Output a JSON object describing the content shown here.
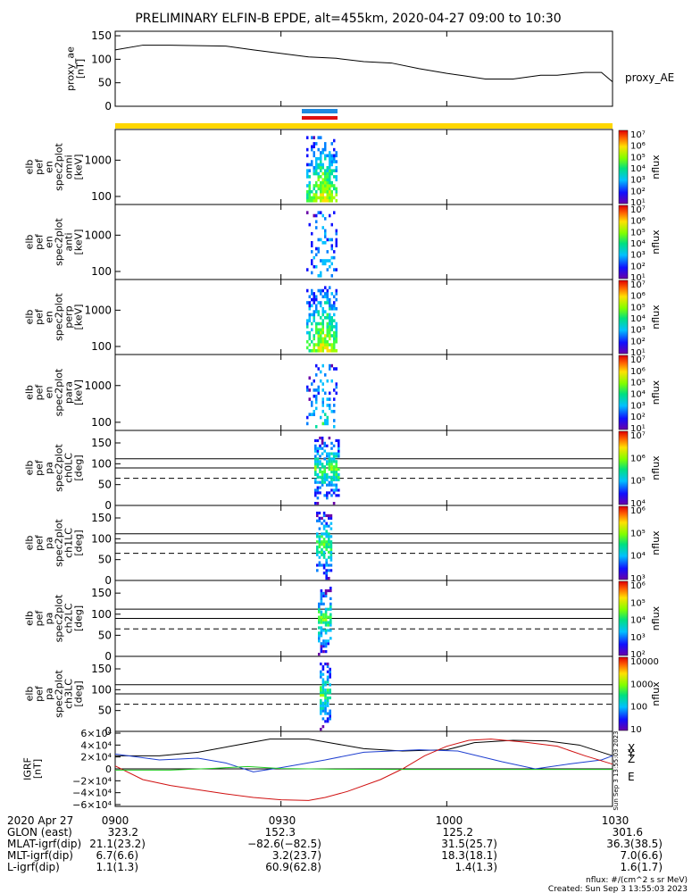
{
  "title": "PRELIMINARY ELFIN-B EPDE, alt=455km, 2020-04-27 09:00 to 10:30",
  "colors": {
    "ae_line": "#000000",
    "bar_blue": "#1f8ae0",
    "bar_red": "#e01010",
    "bar_yellow": "#ffd700",
    "grf_x": "#000000",
    "grf_y": "#1f3fd0",
    "grf_z": "#d01010",
    "grf_e": "#22cc22"
  },
  "chart_data": [
    {
      "type": "line",
      "panel": "proxy_ae",
      "ylabel": [
        "proxy_ae",
        "[nT]"
      ],
      "series_label": "proxy_AE",
      "ylim": [
        0,
        150
      ],
      "yticks": [
        "0",
        "50",
        "100",
        "150"
      ],
      "x_minutes": [
        0,
        5,
        10,
        20,
        25,
        35,
        40,
        45,
        50,
        55,
        60,
        63,
        67,
        72,
        77,
        80,
        85,
        88,
        90
      ],
      "values": [
        120,
        130,
        130,
        128,
        120,
        105,
        102,
        95,
        92,
        80,
        70,
        65,
        58,
        58,
        66,
        66,
        72,
        72,
        52
      ]
    },
    {
      "type": "heatmap",
      "panel": "omni",
      "ylabel": [
        "elb",
        "pef",
        "en",
        "spec2plot",
        "omni",
        "[keV]"
      ],
      "yscale": "log",
      "yticks": [
        "100",
        "1000"
      ],
      "colorbar": {
        "label": "nflux",
        "ticks": [
          "10¹",
          "10²",
          "10³",
          "10⁴",
          "10⁵",
          "10⁶",
          "10⁷"
        ]
      }
    },
    {
      "type": "heatmap",
      "panel": "anti",
      "ylabel": [
        "elb",
        "pef",
        "en",
        "spec2plot",
        "anti",
        "[keV]"
      ],
      "yscale": "log",
      "yticks": [
        "100",
        "1000"
      ],
      "colorbar": {
        "label": "nflux",
        "ticks": [
          "10¹",
          "10²",
          "10³",
          "10⁴",
          "10⁵",
          "10⁶",
          "10⁷"
        ]
      }
    },
    {
      "type": "heatmap",
      "panel": "perp",
      "ylabel": [
        "elb",
        "pef",
        "en",
        "spec2plot",
        "perp",
        "[keV]"
      ],
      "yscale": "log",
      "yticks": [
        "100",
        "1000"
      ],
      "colorbar": {
        "label": "nflux",
        "ticks": [
          "10¹",
          "10²",
          "10³",
          "10⁴",
          "10⁵",
          "10⁶",
          "10⁷"
        ]
      }
    },
    {
      "type": "heatmap",
      "panel": "para",
      "ylabel": [
        "elb",
        "pef",
        "en",
        "spec2plot",
        "para",
        "[keV]"
      ],
      "yscale": "log",
      "yticks": [
        "100",
        "1000"
      ],
      "colorbar": {
        "label": "nflux",
        "ticks": [
          "10¹",
          "10²",
          "10³",
          "10⁴",
          "10⁵",
          "10⁶",
          "10⁷"
        ]
      }
    },
    {
      "type": "heatmap",
      "panel": "ch0LC",
      "ylabel": [
        "elb",
        "pef",
        "pa",
        "spec2plot",
        "ch0LC",
        "[deg]"
      ],
      "ylim": [
        0,
        180
      ],
      "yticks": [
        "0",
        "50",
        "100",
        "150"
      ],
      "colorbar": {
        "label": "nflux",
        "ticks": [
          "10⁴",
          "10⁵",
          "10⁶",
          "10⁷"
        ]
      }
    },
    {
      "type": "heatmap",
      "panel": "ch1LC",
      "ylabel": [
        "elb",
        "pef",
        "pa",
        "spec2plot",
        "ch1LC",
        "[deg]"
      ],
      "ylim": [
        0,
        180
      ],
      "yticks": [
        "0",
        "50",
        "100",
        "150"
      ],
      "colorbar": {
        "label": "nflux",
        "ticks": [
          "10³",
          "10⁴",
          "10⁵",
          "10⁶"
        ]
      }
    },
    {
      "type": "heatmap",
      "panel": "ch2LC",
      "ylabel": [
        "elb",
        "pef",
        "pa",
        "spec2plot",
        "ch2LC",
        "[deg]"
      ],
      "ylim": [
        0,
        180
      ],
      "yticks": [
        "0",
        "50",
        "100",
        "150"
      ],
      "colorbar": {
        "label": "nflux",
        "ticks": [
          "10²",
          "10³",
          "10⁴",
          "10⁵",
          "10⁶"
        ]
      }
    },
    {
      "type": "heatmap",
      "panel": "ch3LC",
      "ylabel": [
        "elb",
        "pef",
        "pa",
        "spec2plot",
        "ch3LC",
        "[deg]"
      ],
      "ylim": [
        0,
        180
      ],
      "yticks": [
        "0",
        "50",
        "100",
        "150"
      ],
      "colorbar": {
        "label": "nflux",
        "ticks": [
          "10",
          "100",
          "1000",
          "10000"
        ]
      }
    },
    {
      "type": "line",
      "panel": "igrf",
      "ylabel": [
        "IGRF",
        "[nT]"
      ],
      "ylim": [
        -60000,
        60000
      ],
      "yticks": [
        "6×10⁴",
        "4×10⁴",
        "2×10⁴",
        "0",
        "−2×10⁴",
        "−4×10⁴",
        "−6×10⁴"
      ],
      "legend": [
        "X",
        "Y",
        "Z",
        "E"
      ],
      "series": [
        {
          "name": "X",
          "x_minutes": [
            0,
            8,
            15,
            22,
            28,
            35,
            40,
            45,
            52,
            60,
            65,
            72,
            78,
            84,
            88,
            90
          ],
          "values": [
            22000,
            22000,
            28000,
            40000,
            50000,
            50000,
            42000,
            34000,
            30000,
            32000,
            44000,
            48000,
            47000,
            40000,
            28000,
            22000
          ]
        },
        {
          "name": "Y",
          "x_minutes": [
            0,
            8,
            15,
            20,
            25,
            30,
            38,
            45,
            55,
            62,
            70,
            76,
            82,
            88,
            90
          ],
          "values": [
            25000,
            15000,
            18000,
            10000,
            -5000,
            2000,
            15000,
            28000,
            32000,
            30000,
            12000,
            0,
            8000,
            15000,
            22000
          ]
        },
        {
          "name": "Z",
          "x_minutes": [
            0,
            5,
            10,
            15,
            20,
            25,
            30,
            35,
            38,
            42,
            48,
            52,
            56,
            60,
            64,
            68,
            74,
            80,
            85,
            90
          ],
          "values": [
            5000,
            -18000,
            -28000,
            -35000,
            -42000,
            -48000,
            -52000,
            -53000,
            -48000,
            -38000,
            -18000,
            0,
            22000,
            38000,
            48000,
            50000,
            45000,
            38000,
            22000,
            8000
          ]
        },
        {
          "name": "E",
          "x_minutes": [
            0,
            10,
            18,
            24,
            30,
            40,
            50,
            60,
            70,
            80,
            90
          ],
          "values": [
            -2000,
            -2000,
            1000,
            4000,
            500,
            -500,
            -1000,
            -1000,
            -1000,
            -1000,
            -1000
          ]
        }
      ]
    }
  ],
  "x_axis": {
    "tick_labels": [
      "0900",
      "0930",
      "1000",
      "1030"
    ],
    "tick_minutes": [
      0,
      30,
      60,
      90
    ]
  },
  "ephemeris": {
    "date_label": "2020 Apr 27",
    "rows": [
      {
        "label": "GLON (east)",
        "values": [
          "323.2",
          "152.3",
          "125.2",
          "301.6"
        ]
      },
      {
        "label": "MLAT-igrf(dip)",
        "values": [
          "21.1(23.2)",
          "−82.6(−82.5)",
          "31.5(25.7)",
          "36.3(38.5)"
        ]
      },
      {
        "label": "MLT-igrf(dip)",
        "values": [
          "6.7(6.6)",
          "3.2(23.7)",
          "18.3(18.1)",
          "7.0(6.6)"
        ]
      },
      {
        "label": "L-igrf(dip)",
        "values": [
          "1.1(1.3)",
          "60.9(62.8)",
          "1.4(1.3)",
          "1.6(1.7)"
        ]
      }
    ]
  },
  "footer": {
    "units": "nflux: #/(cm^2 s sr MeV)",
    "created": "Created: Sun Sep  3 13:55:03 2023",
    "vertical_note": "Sun Sep  3 13:55:03 2023"
  }
}
